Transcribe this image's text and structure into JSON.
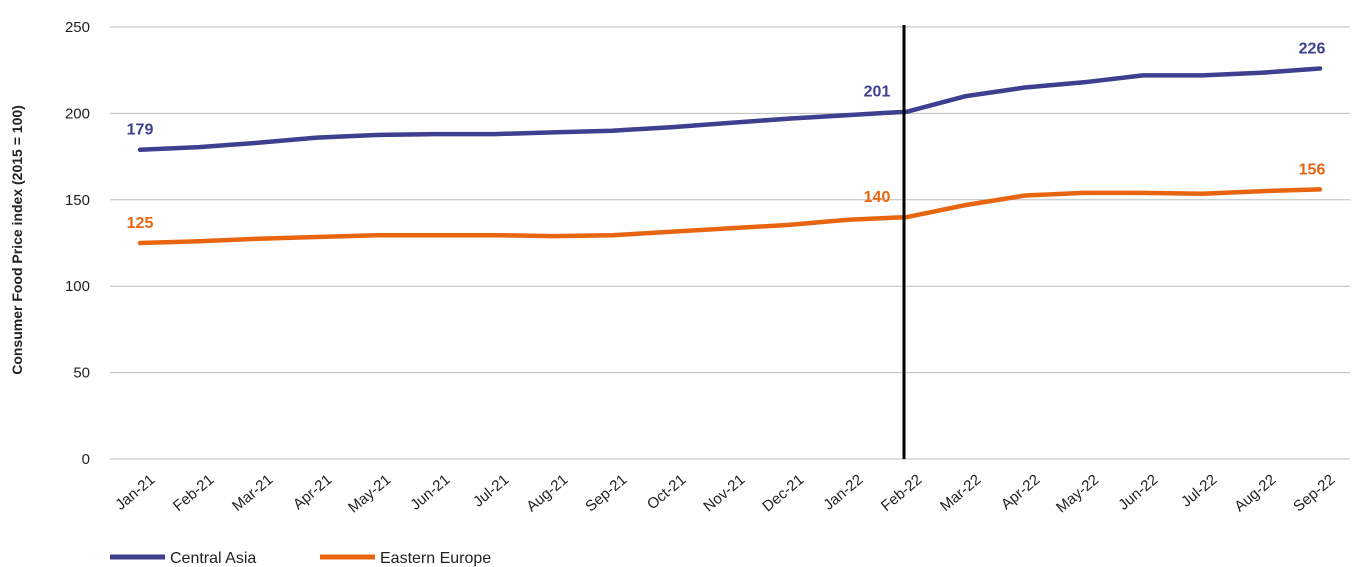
{
  "chart_data": {
    "type": "line",
    "title": "",
    "xlabel": "",
    "ylabel": "Consumer Food Price index (2015 = 100)",
    "ylim": [
      0,
      250
    ],
    "yticks": [
      0,
      50,
      100,
      150,
      200,
      250
    ],
    "grid": "horizontal",
    "legend": "bottom-left",
    "categories": [
      "Jan-21",
      "Feb-21",
      "Mar-21",
      "Apr-21",
      "May-21",
      "Jun-21",
      "Jul-21",
      "Aug-21",
      "Sep-21",
      "Oct-21",
      "Nov-21",
      "Dec-21",
      "Jan-22",
      "Feb-22",
      "Mar-22",
      "Apr-22",
      "May-22",
      "Jun-22",
      "Jul-22",
      "Aug-22",
      "Sep-22"
    ],
    "marker_category": "Feb-22",
    "series": [
      {
        "name": "Central Asia",
        "color": "#3d3f8f",
        "values": [
          179,
          180.5,
          183,
          186,
          187.5,
          188,
          188,
          189,
          190,
          192,
          194.5,
          197,
          199,
          201,
          210,
          215,
          218,
          222,
          222,
          223.5,
          226
        ],
        "labels": [
          {
            "index": 0,
            "text": "179"
          },
          {
            "index": 13,
            "text": "201"
          },
          {
            "index": 20,
            "text": "226"
          }
        ]
      },
      {
        "name": "Eastern Europe",
        "color": "#e8650f",
        "values": [
          125,
          126,
          127.5,
          128.5,
          129.5,
          129.5,
          129.5,
          129,
          129.5,
          131.5,
          133.5,
          135.5,
          138.5,
          140,
          147,
          152.5,
          154,
          154,
          153.5,
          155,
          156
        ],
        "labels": [
          {
            "index": 0,
            "text": "125"
          },
          {
            "index": 13,
            "text": "140"
          },
          {
            "index": 20,
            "text": "156"
          }
        ]
      }
    ]
  }
}
